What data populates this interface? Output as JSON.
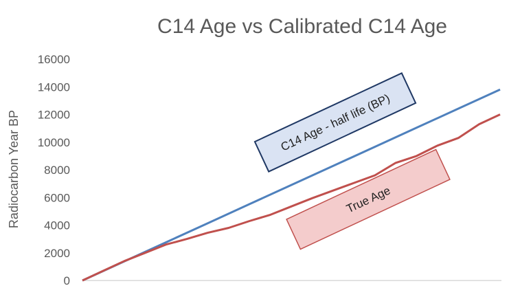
{
  "chart_data": {
    "type": "line",
    "title": "C14 Age   vs   Calibrated C14 Age",
    "xlabel": "",
    "ylabel": "Radiocarbon Year BP",
    "ylim": [
      0,
      16000
    ],
    "yticks": [
      0,
      2000,
      4000,
      6000,
      8000,
      10000,
      12000,
      14000,
      16000
    ],
    "xlim": [
      0,
      100
    ],
    "grid": false,
    "legend": "none",
    "series": [
      {
        "color": "#4f81bd",
        "x": [
          0,
          10,
          20,
          30,
          40,
          50,
          60,
          70,
          80,
          90,
          100
        ],
        "values": [
          0,
          1380,
          2760,
          4140,
          5520,
          6900,
          8280,
          9660,
          11040,
          12420,
          13800
        ]
      },
      {
        "color": "#c0504d",
        "x": [
          0,
          5,
          10,
          15,
          20,
          25,
          30,
          35,
          40,
          45,
          50,
          55,
          60,
          65,
          70,
          75,
          80,
          85,
          90,
          95,
          100
        ],
        "values": [
          0,
          700,
          1400,
          2000,
          2600,
          3000,
          3450,
          3800,
          4300,
          4750,
          5350,
          5950,
          6500,
          7050,
          7600,
          8500,
          9000,
          9750,
          10300,
          11300,
          12000
        ]
      }
    ],
    "annotations": [
      {
        "text": "C14 Age - half life (BP)",
        "border": "#1f3864",
        "fill": "#dae3f3",
        "series_color": "#4f81bd"
      },
      {
        "text": "True Age",
        "border": "#c0504d",
        "fill": "#f4cccc",
        "series_color": "#c0504d"
      }
    ]
  }
}
